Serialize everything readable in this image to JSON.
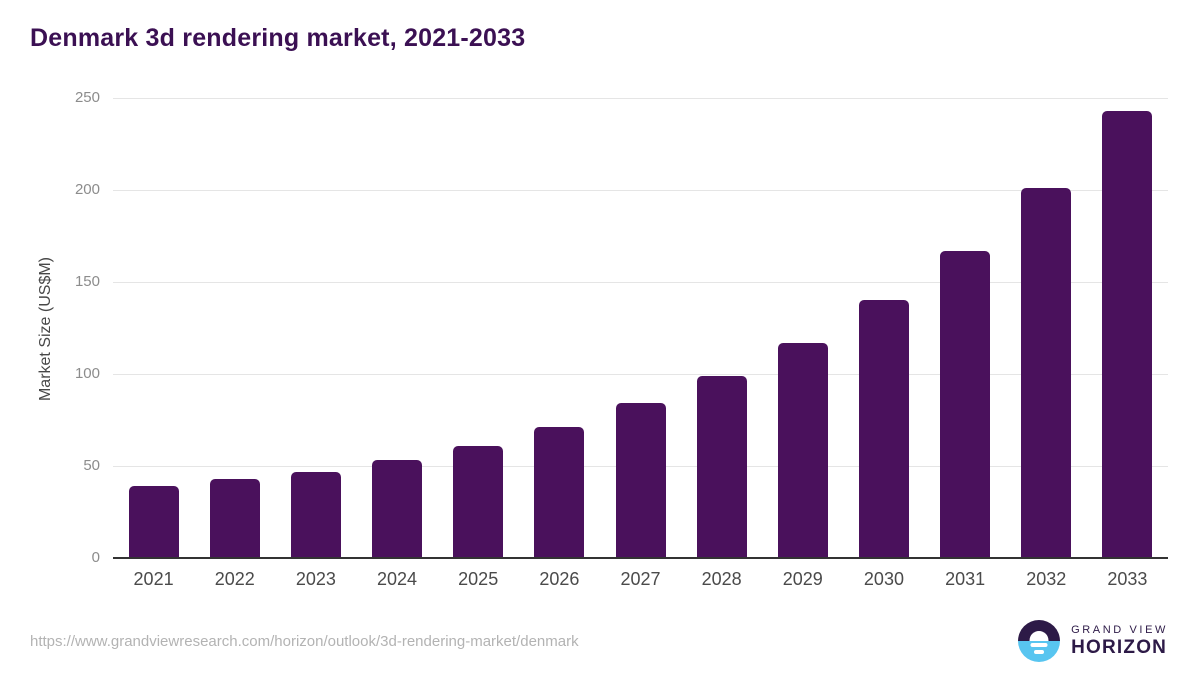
{
  "chart_data": {
    "type": "bar",
    "title": "Denmark 3d rendering market, 2021-2033",
    "xlabel": "",
    "ylabel": "Market Size (US$M)",
    "categories": [
      "2021",
      "2022",
      "2023",
      "2024",
      "2025",
      "2026",
      "2027",
      "2028",
      "2029",
      "2030",
      "2031",
      "2032",
      "2033"
    ],
    "values": [
      39,
      43,
      47,
      53,
      61,
      71,
      84,
      99,
      117,
      140,
      167,
      201,
      243
    ],
    "ylim": [
      0,
      250
    ],
    "ytick_step": 50,
    "yticks": [
      "0",
      "50",
      "100",
      "150",
      "200",
      "250"
    ],
    "grid": "horizontal-lines-on",
    "legend": "none",
    "bar_corner": "rounded-top"
  },
  "footer": {
    "url": "https://www.grandviewresearch.com/horizon/outlook/3d-rendering-market/denmark",
    "logo": {
      "brand": "GRAND VIEW",
      "product": "HORIZON",
      "icon": "horizon-sun-icon"
    }
  },
  "colors": {
    "bar": "#4a115c",
    "title": "#3b1053",
    "gridline": "#e5e5e5",
    "axis_line": "#333333",
    "ytick_label": "#8c8c8c",
    "xtick_label": "#4a4a4a",
    "y_axis_title": "#474747",
    "url_text": "#b3b3b3",
    "logo_navy": "#2d1a47",
    "logo_blue": "#58c5f0"
  }
}
